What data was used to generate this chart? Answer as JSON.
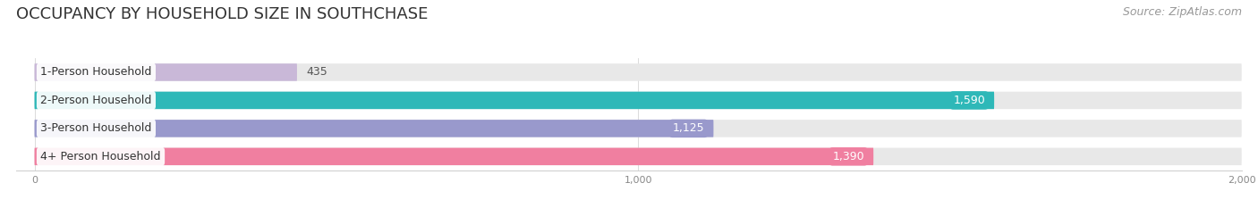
{
  "title": "OCCUPANCY BY HOUSEHOLD SIZE IN SOUTHCHASE",
  "source": "Source: ZipAtlas.com",
  "categories": [
    "1-Person Household",
    "2-Person Household",
    "3-Person Household",
    "4+ Person Household"
  ],
  "values": [
    435,
    1590,
    1125,
    1390
  ],
  "bar_colors": [
    "#c9b8d8",
    "#2eb8b8",
    "#9999cc",
    "#f07fa0"
  ],
  "value_pill_colors": [
    "#c9b8d8",
    "#2eb8b8",
    "#9999cc",
    "#f07fa0"
  ],
  "xlim": [
    0,
    2000
  ],
  "xticks": [
    0,
    1000,
    2000
  ],
  "background_color": "#ffffff",
  "bar_background_color": "#e8e8e8",
  "title_fontsize": 13,
  "source_fontsize": 9,
  "label_fontsize": 9,
  "value_fontsize": 9,
  "figsize": [
    14.06,
    2.33
  ],
  "dpi": 100
}
